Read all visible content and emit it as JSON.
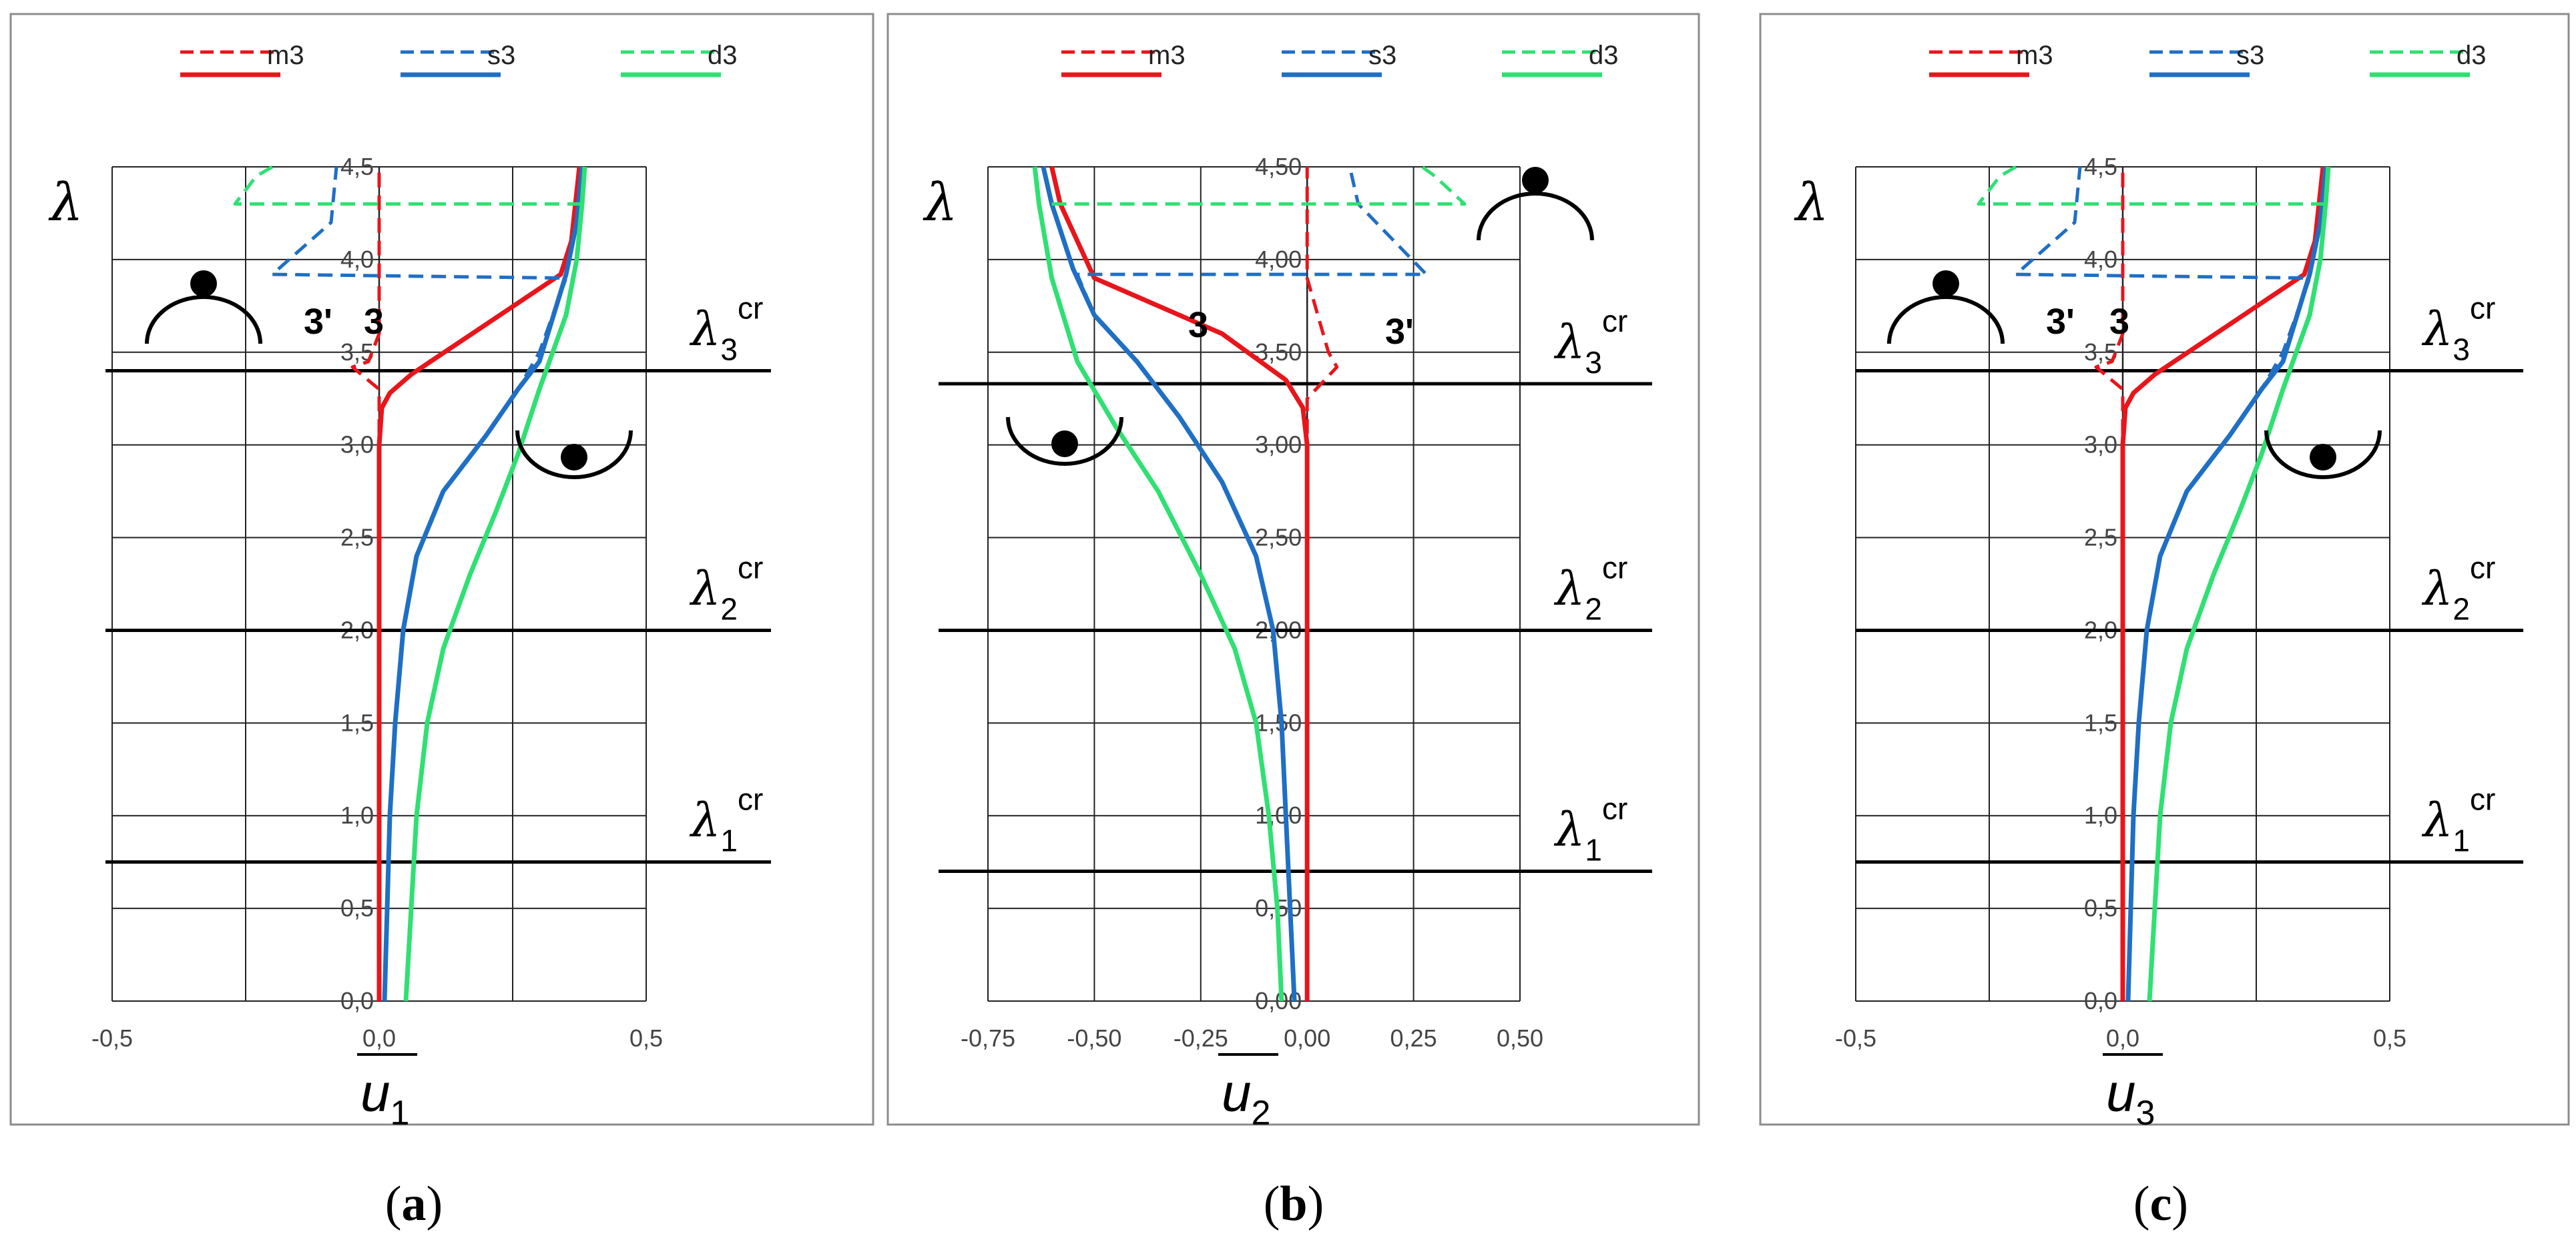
{
  "colors": {
    "m3": "#e8151b",
    "s3": "#1f6fc5",
    "d3": "#2fe072",
    "grid": "#000000",
    "frame": "#8c8c8c"
  },
  "chart_data": [
    {
      "type": "line",
      "panel": "a",
      "caption": {
        "open": "(",
        "letter": "a",
        "close": ")"
      },
      "x_label": {
        "main": "u",
        "sub": "1"
      },
      "y_label": "λ",
      "xlim": [
        -0.5,
        0.5
      ],
      "ylim": [
        0,
        4.5
      ],
      "x_ticks": [
        -0.5,
        0.0,
        0.5
      ],
      "x_tick_labels": [
        "-0,5",
        "0,0",
        "0,5"
      ],
      "y_ticks": [
        0,
        0.5,
        1,
        1.5,
        2,
        2.5,
        3,
        3.5,
        4,
        4.5
      ],
      "y_tick_labels": [
        "0,0",
        "0,5",
        "1,0",
        "1,5",
        "2,0",
        "2,5",
        "3,0",
        "3,5",
        "4,0",
        "4,5"
      ],
      "x_grid": [
        -0.25,
        0.25
      ],
      "legend": [
        "m3",
        "s3",
        "d3"
      ],
      "series": [
        {
          "name": "m3",
          "style": "solid",
          "points": [
            [
              0.0,
              0
            ],
            [
              0.0,
              1
            ],
            [
              0.0,
              2
            ],
            [
              0.0,
              2.5
            ],
            [
              0.0,
              3.0
            ],
            [
              0.005,
              3.2
            ],
            [
              0.02,
              3.28
            ],
            [
              0.06,
              3.38
            ],
            [
              0.2,
              3.65
            ],
            [
              0.34,
              3.92
            ],
            [
              0.36,
              4.1
            ],
            [
              0.375,
              4.5
            ]
          ]
        },
        {
          "name": "s3",
          "style": "solid",
          "points": [
            [
              0.01,
              0
            ],
            [
              0.015,
              0.5
            ],
            [
              0.02,
              1.0
            ],
            [
              0.03,
              1.5
            ],
            [
              0.045,
              2.0
            ],
            [
              0.07,
              2.4
            ],
            [
              0.12,
              2.75
            ],
            [
              0.2,
              3.05
            ],
            [
              0.26,
              3.3
            ],
            [
              0.3,
              3.45
            ],
            [
              0.35,
              3.92
            ],
            [
              0.37,
              4.2
            ],
            [
              0.38,
              4.5
            ]
          ]
        },
        {
          "name": "d3",
          "style": "solid",
          "points": [
            [
              0.05,
              0
            ],
            [
              0.06,
              0.5
            ],
            [
              0.07,
              1.0
            ],
            [
              0.09,
              1.5
            ],
            [
              0.12,
              1.9
            ],
            [
              0.17,
              2.3
            ],
            [
              0.22,
              2.65
            ],
            [
              0.26,
              2.95
            ],
            [
              0.3,
              3.3
            ],
            [
              0.35,
              3.7
            ],
            [
              0.37,
              4.0
            ],
            [
              0.38,
              4.3
            ],
            [
              0.385,
              4.5
            ]
          ]
        },
        {
          "name": "m3",
          "style": "dashed",
          "points": [
            [
              0.0,
              0
            ],
            [
              0.0,
              3.0
            ],
            [
              0.0,
              3.3
            ],
            [
              -0.05,
              3.42
            ],
            [
              -0.02,
              3.45
            ],
            [
              0.0,
              3.6
            ],
            [
              0.0,
              4.5
            ]
          ]
        },
        {
          "name": "s3",
          "style": "dashed",
          "points": [
            [
              0.01,
              0
            ],
            [
              0.015,
              0.5
            ],
            [
              0.02,
              1.0
            ],
            [
              0.03,
              1.5
            ],
            [
              0.045,
              2.0
            ],
            [
              0.07,
              2.4
            ],
            [
              0.12,
              2.75
            ],
            [
              0.2,
              3.05
            ],
            [
              0.26,
              3.3
            ],
            [
              0.3,
              3.5
            ],
            [
              0.35,
              3.9
            ],
            [
              -0.2,
              3.92
            ],
            [
              -0.09,
              4.2
            ],
            [
              -0.08,
              4.5
            ]
          ]
        },
        {
          "name": "d3",
          "style": "dashed",
          "points": [
            [
              0.38,
              4.3
            ],
            [
              -0.27,
              4.3
            ],
            [
              -0.23,
              4.45
            ],
            [
              -0.2,
              4.5
            ]
          ]
        }
      ],
      "critical_lines": [
        {
          "label": "λ",
          "sub": "1",
          "sup": "cr",
          "y": 0.75
        },
        {
          "label": "λ",
          "sub": "2",
          "sup": "cr",
          "y": 2.0
        },
        {
          "label": "λ",
          "sub": "3",
          "sup": "cr",
          "y": 3.4
        }
      ],
      "annotations": [
        {
          "text": "3'"
        },
        {
          "text": "3"
        }
      ]
    },
    {
      "type": "line",
      "panel": "b",
      "caption": {
        "open": "(",
        "letter": "b",
        "close": ")"
      },
      "x_label": {
        "main": "u",
        "sub": "2"
      },
      "y_label": "λ",
      "xlim": [
        -0.75,
        0.5
      ],
      "ylim": [
        0,
        4.5
      ],
      "x_ticks": [
        -0.75,
        -0.5,
        -0.25,
        0.0,
        0.25,
        0.5
      ],
      "x_tick_labels": [
        "-0,75",
        "-0,50",
        "-0,25",
        "0,00",
        "0,25",
        "0,50"
      ],
      "y_ticks": [
        0,
        0.5,
        1,
        1.5,
        2,
        2.5,
        3,
        3.5,
        4,
        4.5
      ],
      "y_tick_labels": [
        "0,00",
        "0,50",
        "1,00",
        "1,50",
        "2,00",
        "2,50",
        "3,00",
        "3,50",
        "4,00",
        "4,50"
      ],
      "x_grid": [
        -0.5,
        -0.25,
        0.0,
        0.25
      ],
      "legend": [
        "m3",
        "s3",
        "d3"
      ],
      "series": [
        {
          "name": "m3",
          "style": "solid",
          "points": [
            [
              0.0,
              0
            ],
            [
              0.0,
              2.0
            ],
            [
              0.0,
              3.0
            ],
            [
              -0.01,
              3.2
            ],
            [
              -0.05,
              3.35
            ],
            [
              -0.2,
              3.6
            ],
            [
              -0.5,
              3.9
            ],
            [
              -0.58,
              4.3
            ],
            [
              -0.6,
              4.5
            ]
          ]
        },
        {
          "name": "s3",
          "style": "solid",
          "points": [
            [
              -0.03,
              0
            ],
            [
              -0.04,
              0.5
            ],
            [
              -0.05,
              1.0
            ],
            [
              -0.06,
              1.5
            ],
            [
              -0.08,
              2.0
            ],
            [
              -0.12,
              2.4
            ],
            [
              -0.2,
              2.8
            ],
            [
              -0.3,
              3.15
            ],
            [
              -0.4,
              3.45
            ],
            [
              -0.5,
              3.7
            ],
            [
              -0.55,
              3.95
            ],
            [
              -0.6,
              4.3
            ],
            [
              -0.62,
              4.5
            ]
          ]
        },
        {
          "name": "d3",
          "style": "solid",
          "points": [
            [
              -0.06,
              0
            ],
            [
              -0.07,
              0.5
            ],
            [
              -0.09,
              1.0
            ],
            [
              -0.12,
              1.5
            ],
            [
              -0.17,
              1.9
            ],
            [
              -0.25,
              2.3
            ],
            [
              -0.35,
              2.75
            ],
            [
              -0.45,
              3.1
            ],
            [
              -0.54,
              3.45
            ],
            [
              -0.6,
              3.9
            ],
            [
              -0.63,
              4.3
            ],
            [
              -0.64,
              4.5
            ]
          ]
        },
        {
          "name": "m3",
          "style": "dashed",
          "points": [
            [
              0.0,
              0
            ],
            [
              0.0,
              3.0
            ],
            [
              0.0,
              3.25
            ],
            [
              0.07,
              3.42
            ],
            [
              0.05,
              3.5
            ],
            [
              0.0,
              3.9
            ],
            [
              0.0,
              4.5
            ]
          ]
        },
        {
          "name": "s3",
          "style": "dashed",
          "points": [
            [
              -0.03,
              0
            ],
            [
              -0.04,
              0.5
            ],
            [
              -0.05,
              1.0
            ],
            [
              -0.06,
              1.5
            ],
            [
              -0.08,
              2.0
            ],
            [
              -0.12,
              2.4
            ],
            [
              -0.2,
              2.8
            ],
            [
              -0.3,
              3.15
            ],
            [
              -0.4,
              3.45
            ],
            [
              -0.5,
              3.7
            ],
            [
              -0.54,
              3.92
            ],
            [
              0.28,
              3.92
            ],
            [
              0.12,
              4.3
            ],
            [
              0.1,
              4.5
            ]
          ]
        },
        {
          "name": "d3",
          "style": "dashed",
          "points": [
            [
              -0.6,
              4.3
            ],
            [
              0.37,
              4.3
            ],
            [
              0.3,
              4.45
            ],
            [
              0.27,
              4.5
            ]
          ]
        }
      ],
      "critical_lines": [
        {
          "label": "λ",
          "sub": "1",
          "sup": "cr",
          "y": 0.7
        },
        {
          "label": "λ",
          "sub": "2",
          "sup": "cr",
          "y": 2.0
        },
        {
          "label": "λ",
          "sub": "3",
          "sup": "cr",
          "y": 3.33
        }
      ],
      "annotations": [
        {
          "text": "3"
        },
        {
          "text": "3'"
        }
      ]
    },
    {
      "type": "line",
      "panel": "c",
      "caption": {
        "open": "(",
        "letter": "c",
        "close": ")"
      },
      "x_label": {
        "main": "u",
        "sub": "3"
      },
      "y_label": "λ",
      "xlim": [
        -0.5,
        0.5
      ],
      "ylim": [
        0,
        4.5
      ],
      "x_ticks": [
        -0.5,
        0.0,
        0.5
      ],
      "x_tick_labels": [
        "-0,5",
        "0,0",
        "0,5"
      ],
      "y_ticks": [
        0,
        0.5,
        1,
        1.5,
        2,
        2.5,
        3,
        3.5,
        4,
        4.5
      ],
      "y_tick_labels": [
        "0,0",
        "0,5",
        "1,0",
        "1,5",
        "2,0",
        "2,5",
        "3,0",
        "3,5",
        "4,0",
        "4,5"
      ],
      "x_grid": [
        -0.25,
        0.25
      ],
      "legend": [
        "m3",
        "s3",
        "d3"
      ],
      "series": [
        {
          "name": "m3",
          "style": "solid",
          "points": [
            [
              0.0,
              0
            ],
            [
              0.0,
              1
            ],
            [
              0.0,
              2
            ],
            [
              0.0,
              2.5
            ],
            [
              0.0,
              3.0
            ],
            [
              0.005,
              3.2
            ],
            [
              0.02,
              3.28
            ],
            [
              0.06,
              3.38
            ],
            [
              0.2,
              3.65
            ],
            [
              0.34,
              3.92
            ],
            [
              0.36,
              4.1
            ],
            [
              0.375,
              4.5
            ]
          ]
        },
        {
          "name": "s3",
          "style": "solid",
          "points": [
            [
              0.01,
              0
            ],
            [
              0.015,
              0.5
            ],
            [
              0.02,
              1.0
            ],
            [
              0.03,
              1.5
            ],
            [
              0.045,
              2.0
            ],
            [
              0.07,
              2.4
            ],
            [
              0.12,
              2.75
            ],
            [
              0.2,
              3.05
            ],
            [
              0.26,
              3.3
            ],
            [
              0.3,
              3.45
            ],
            [
              0.35,
              3.92
            ],
            [
              0.37,
              4.2
            ],
            [
              0.38,
              4.5
            ]
          ]
        },
        {
          "name": "d3",
          "style": "solid",
          "points": [
            [
              0.05,
              0
            ],
            [
              0.06,
              0.5
            ],
            [
              0.07,
              1.0
            ],
            [
              0.09,
              1.5
            ],
            [
              0.12,
              1.9
            ],
            [
              0.17,
              2.3
            ],
            [
              0.22,
              2.65
            ],
            [
              0.26,
              2.95
            ],
            [
              0.3,
              3.3
            ],
            [
              0.35,
              3.7
            ],
            [
              0.37,
              4.0
            ],
            [
              0.38,
              4.3
            ],
            [
              0.385,
              4.5
            ]
          ]
        },
        {
          "name": "m3",
          "style": "dashed",
          "points": [
            [
              0.0,
              0
            ],
            [
              0.0,
              3.0
            ],
            [
              0.0,
              3.3
            ],
            [
              -0.05,
              3.42
            ],
            [
              -0.02,
              3.45
            ],
            [
              0.0,
              3.6
            ],
            [
              0.0,
              4.5
            ]
          ]
        },
        {
          "name": "s3",
          "style": "dashed",
          "points": [
            [
              0.01,
              0
            ],
            [
              0.015,
              0.5
            ],
            [
              0.02,
              1.0
            ],
            [
              0.03,
              1.5
            ],
            [
              0.045,
              2.0
            ],
            [
              0.07,
              2.4
            ],
            [
              0.12,
              2.75
            ],
            [
              0.2,
              3.05
            ],
            [
              0.26,
              3.3
            ],
            [
              0.3,
              3.5
            ],
            [
              0.35,
              3.9
            ],
            [
              -0.2,
              3.92
            ],
            [
              -0.09,
              4.2
            ],
            [
              -0.08,
              4.5
            ]
          ]
        },
        {
          "name": "d3",
          "style": "dashed",
          "points": [
            [
              0.38,
              4.3
            ],
            [
              -0.27,
              4.3
            ],
            [
              -0.23,
              4.45
            ],
            [
              -0.2,
              4.5
            ]
          ]
        }
      ],
      "critical_lines": [
        {
          "label": "λ",
          "sub": "1",
          "sup": "cr",
          "y": 0.75
        },
        {
          "label": "λ",
          "sub": "2",
          "sup": "cr",
          "y": 2.0
        },
        {
          "label": "λ",
          "sub": "3",
          "sup": "cr",
          "y": 3.4
        }
      ],
      "annotations": [
        {
          "text": "3'"
        },
        {
          "text": "3"
        }
      ]
    }
  ]
}
